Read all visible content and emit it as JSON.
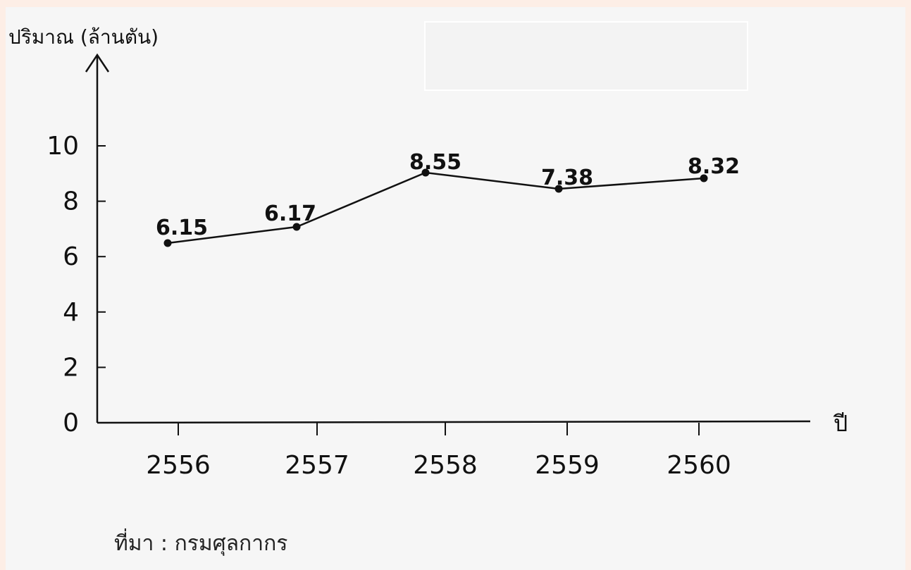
{
  "chart_data": {
    "type": "line",
    "ylabel": "ปริมาณ (ล้านตัน)",
    "xlabel": "ปี",
    "categories": [
      "2556",
      "2557",
      "2558",
      "2559",
      "2560"
    ],
    "values": [
      6.15,
      6.17,
      8.55,
      7.38,
      8.32
    ],
    "data_labels": [
      "6.15",
      "6.17",
      "8.55",
      "7.38",
      "8.32"
    ],
    "yticks": [
      "0",
      "2",
      "4",
      "6",
      "8",
      "10"
    ],
    "ylim": [
      0,
      10
    ],
    "grid": false,
    "line_color": "#111111"
  },
  "source": "ที่มา :  กรมศุลกากร"
}
